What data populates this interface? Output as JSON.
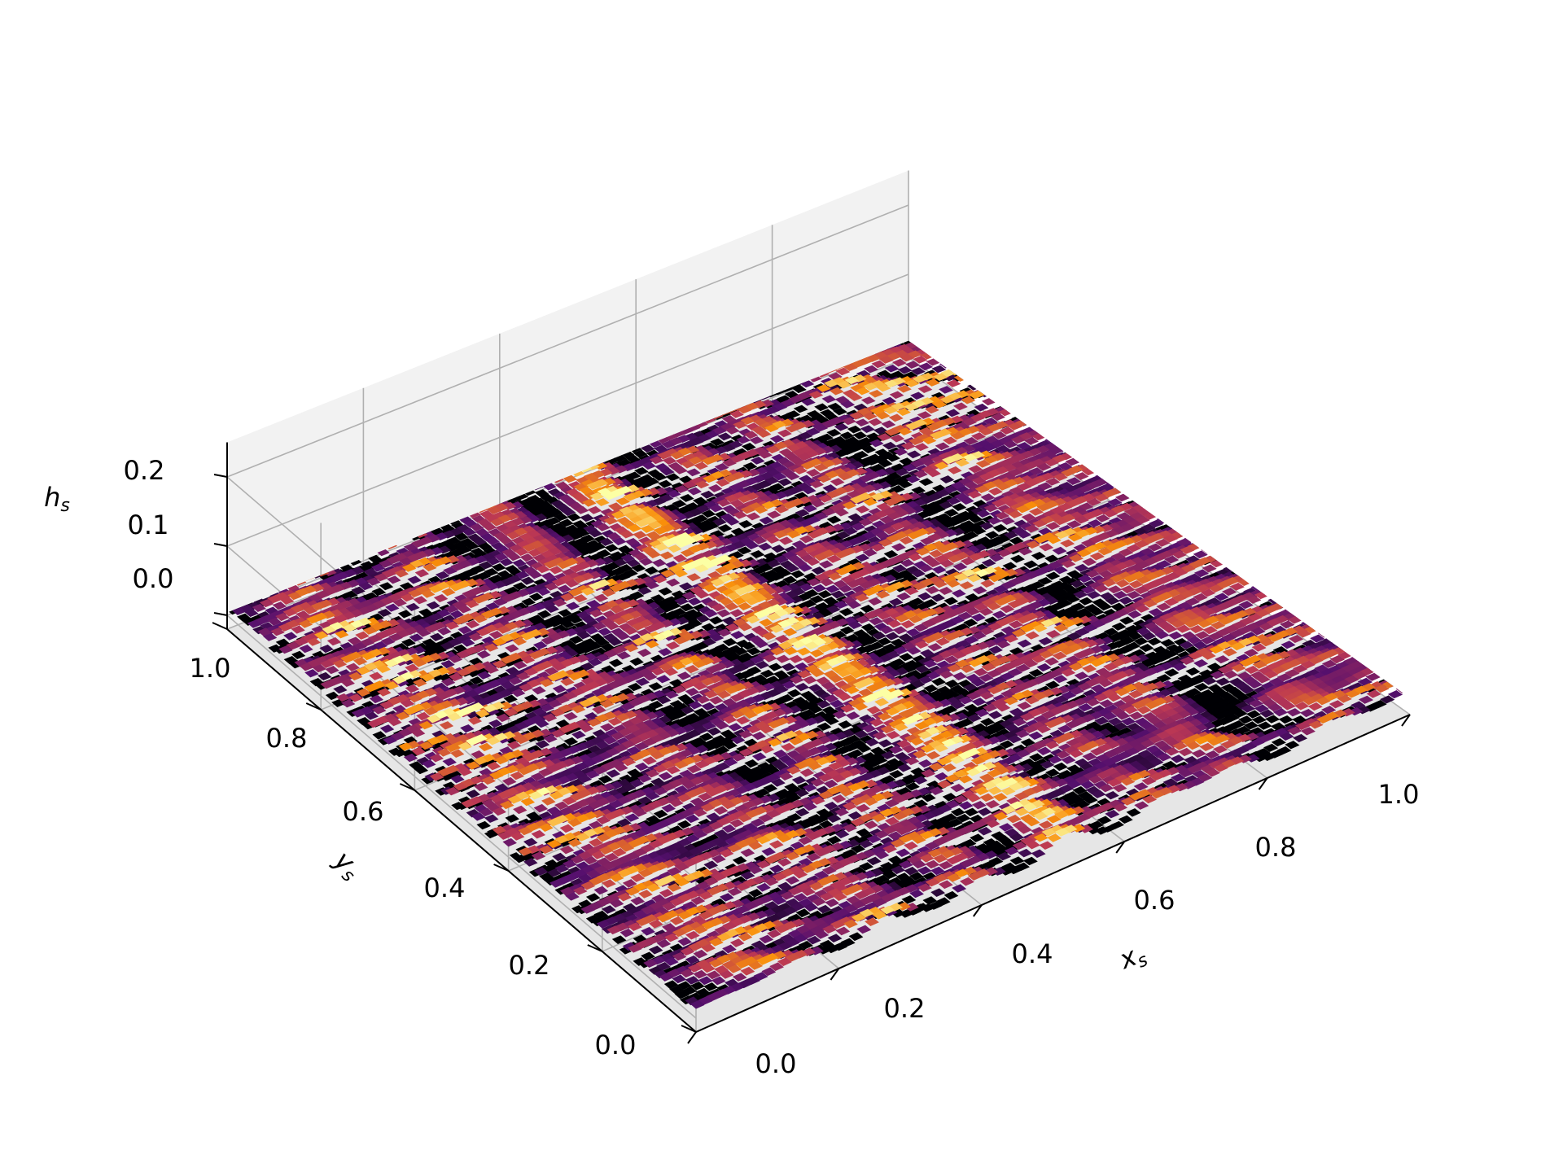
{
  "chart_data": {
    "type": "surface3d",
    "title": "",
    "xlabel": "x_s",
    "ylabel": "y_s",
    "zlabel": "h_s",
    "xlim": [
      0.0,
      1.0
    ],
    "ylim": [
      0.0,
      1.0
    ],
    "zlim": [
      -0.02,
      0.25
    ],
    "x_ticks": [
      "0.0",
      "0.2",
      "0.4",
      "0.6",
      "0.8",
      "1.0"
    ],
    "y_ticks": [
      "0.0",
      "0.2",
      "0.4",
      "0.6",
      "0.8",
      "1.0"
    ],
    "z_ticks": [
      "0.0",
      "0.1",
      "0.2"
    ],
    "grid": true,
    "colormap": "inferno",
    "colors": {
      "pane_back": "#f2f2f2",
      "pane_side": "#ebebeb",
      "pane_floor": "#e6e6e6",
      "grid": "#b0b0b0",
      "surface_palette": [
        "#000004",
        "#56106e",
        "#bb3754",
        "#f98e09",
        "#fcffa4"
      ]
    },
    "surface_description_heights": {
      "min": 0.0,
      "max": 0.03,
      "texture": "streaky rough surface elongated along x"
    }
  }
}
